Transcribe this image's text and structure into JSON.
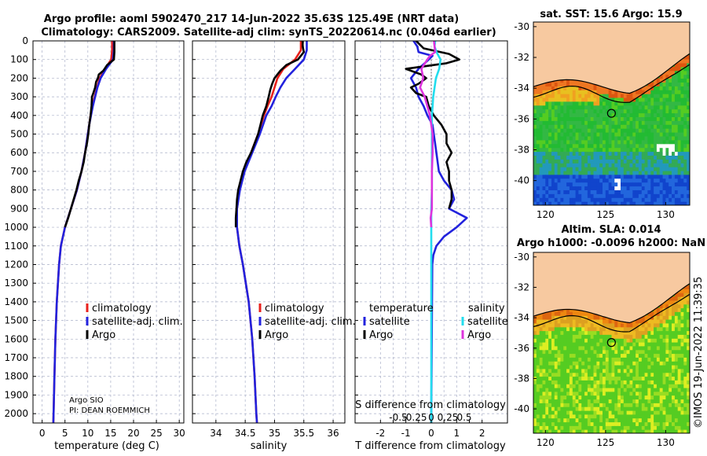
{
  "header": {
    "line1": "Argo profile: aoml 5902470_217 14-Jun-2022 35.63S 125.49E (NRT data)",
    "line2": "Climatology: CARS2009. Satellite-adj clim: synTS_20220614.nc (0.046d earlier)"
  },
  "credit": {
    "agency": "Argo SIO",
    "pi": "PI: DEAN ROEMMICH",
    "stamp": "©IMOS 19-Jun-2022 11:39:35"
  },
  "colors": {
    "climatology": "#e8211c",
    "satellite": "#2222dd",
    "argo": "#000000",
    "sal_satellite": "#22ddee",
    "sal_argo": "#dd33dd",
    "land": "#f7c9a0",
    "grid": "#aab0c8"
  },
  "legend": {
    "climatology": "climatology",
    "satellite": "satellite-adj. clim.",
    "argo": "Argo",
    "diff_temperature": "temperature",
    "diff_salinity": "salinity",
    "diff_satellite": "satellite",
    "diff_argo": "Argo"
  },
  "chart_data": [
    {
      "type": "line",
      "title": "temperature profile",
      "xlabel": "temperature (deg C)",
      "ylabel": "",
      "xlim": [
        -2,
        31
      ],
      "ylim": [
        2050,
        0
      ],
      "x_ticks": [
        "0",
        "5",
        "10",
        "15",
        "20",
        "25",
        "30"
      ],
      "y_ticks": [
        "0",
        "100",
        "200",
        "300",
        "400",
        "500",
        "600",
        "700",
        "800",
        "900",
        "1000",
        "1100",
        "1200",
        "1300",
        "1400",
        "1500",
        "1600",
        "1700",
        "1800",
        "1900",
        "2000"
      ],
      "series": [
        {
          "name": "climatology",
          "pressure": [
            0,
            50,
            100,
            150,
            200,
            250,
            300,
            350,
            400,
            450,
            500,
            600,
            700,
            800,
            900,
            1000,
            1100,
            1200,
            1400,
            1600,
            1800,
            2000,
            2050
          ],
          "values": [
            15.3,
            15.3,
            15.1,
            13.8,
            12.6,
            12.0,
            11.5,
            11.0,
            10.6,
            10.3,
            10.0,
            9.4,
            8.6,
            7.6,
            6.3,
            5.0,
            4.1,
            3.7,
            3.2,
            2.9,
            2.7,
            2.5,
            2.45
          ]
        },
        {
          "name": "satellite-adj. clim.",
          "pressure": [
            0,
            50,
            100,
            150,
            200,
            250,
            300,
            350,
            400,
            450,
            500,
            600,
            700,
            800,
            900,
            1000,
            1100,
            1200,
            1400,
            1600,
            1800,
            2000,
            2050
          ],
          "values": [
            15.7,
            15.7,
            15.5,
            14.0,
            12.8,
            12.1,
            11.6,
            11.1,
            10.7,
            10.3,
            10.0,
            9.4,
            8.6,
            7.6,
            6.3,
            5.0,
            4.1,
            3.7,
            3.2,
            2.9,
            2.7,
            2.5,
            2.45
          ]
        },
        {
          "name": "Argo",
          "pressure": [
            0,
            20,
            60,
            100,
            130,
            160,
            180,
            200,
            220,
            250,
            280,
            300,
            350,
            400,
            450,
            500,
            550,
            600,
            650,
            700,
            750,
            800,
            850,
            900,
            950,
            1000
          ],
          "values": [
            15.8,
            15.8,
            15.8,
            15.7,
            14.2,
            13.4,
            12.4,
            12.2,
            11.8,
            11.6,
            11.2,
            10.9,
            10.8,
            10.6,
            10.3,
            10.1,
            9.8,
            9.4,
            9.1,
            8.6,
            8.0,
            7.5,
            6.9,
            6.3,
            5.7,
            5.0
          ]
        }
      ]
    },
    {
      "type": "line",
      "title": "salinity profile",
      "xlabel": "salinity",
      "ylabel": "",
      "xlim": [
        33.6,
        36.2
      ],
      "ylim": [
        2050,
        0
      ],
      "x_ticks": [
        "34",
        "34.5",
        "35",
        "35.5",
        "36"
      ],
      "series": [
        {
          "name": "climatology",
          "pressure": [
            0,
            50,
            100,
            150,
            200,
            250,
            300,
            350,
            400,
            500,
            600,
            700,
            800,
            900,
            1000,
            1100,
            1200,
            1400,
            1600,
            1800,
            2000,
            2050
          ],
          "values": [
            35.45,
            35.45,
            35.35,
            35.15,
            35.05,
            35.0,
            34.95,
            34.88,
            34.82,
            34.72,
            34.6,
            34.48,
            34.4,
            34.36,
            34.36,
            34.4,
            34.46,
            34.56,
            34.62,
            34.66,
            34.69,
            34.7
          ]
        },
        {
          "name": "satellite-adj. clim.",
          "pressure": [
            0,
            50,
            100,
            150,
            200,
            250,
            300,
            350,
            400,
            500,
            600,
            700,
            800,
            900,
            1000,
            1100,
            1200,
            1400,
            1600,
            1800,
            2000,
            2050
          ],
          "values": [
            35.55,
            35.55,
            35.5,
            35.35,
            35.2,
            35.1,
            35.02,
            34.95,
            34.86,
            34.75,
            34.62,
            34.49,
            34.41,
            34.36,
            34.36,
            34.4,
            34.46,
            34.56,
            34.62,
            34.66,
            34.69,
            34.7
          ]
        },
        {
          "name": "Argo",
          "pressure": [
            0,
            30,
            60,
            100,
            130,
            160,
            200,
            230,
            260,
            300,
            350,
            400,
            450,
            500,
            550,
            600,
            650,
            700,
            750,
            800,
            850,
            900,
            950,
            1000
          ],
          "values": [
            35.48,
            35.48,
            35.5,
            35.4,
            35.2,
            35.1,
            35.0,
            34.96,
            34.93,
            34.9,
            34.86,
            34.8,
            34.76,
            34.72,
            34.66,
            34.6,
            34.52,
            34.46,
            34.42,
            34.38,
            34.36,
            34.35,
            34.34,
            34.34
          ]
        }
      ]
    },
    {
      "type": "line",
      "title": "difference from climatology",
      "xlabel": "T difference from climatology",
      "xlabel_top": "S difference from climatology",
      "xlim": [
        -3,
        3
      ],
      "ylim": [
        2050,
        0
      ],
      "x_ticks": [
        "-2",
        "-1.5",
        "-1",
        "-0.5",
        "0",
        "0.5",
        "1",
        "1.5",
        "2"
      ],
      "s_ticks": [
        "-0.5",
        "-0.25",
        "0",
        "0.25",
        "0.5"
      ],
      "series": [
        {
          "name": "temperature satellite",
          "pressure": [
            0,
            30,
            60,
            80,
            100,
            150,
            200,
            250,
            300,
            350,
            400,
            450,
            500,
            550,
            600,
            650,
            700,
            750,
            800,
            850,
            900,
            950,
            1000,
            1050,
            1100,
            1150,
            1200,
            2000,
            2050
          ],
          "values": [
            -0.7,
            -0.55,
            -0.5,
            0.05,
            -0.1,
            -0.5,
            -0.8,
            -0.6,
            -0.5,
            -0.3,
            -0.15,
            0.05,
            0.1,
            0.15,
            0.2,
            0.25,
            0.3,
            0.5,
            0.8,
            0.9,
            0.7,
            1.4,
            1.0,
            0.5,
            0.2,
            0.08,
            0.04,
            0.0,
            0.0
          ]
        },
        {
          "name": "temperature Argo",
          "pressure": [
            0,
            40,
            70,
            100,
            120,
            150,
            180,
            200,
            230,
            250,
            280,
            300,
            350,
            400,
            450,
            500,
            550,
            600,
            650,
            700,
            750,
            800,
            850,
            900
          ],
          "values": [
            -0.6,
            -0.3,
            0.7,
            1.1,
            0.6,
            -1.0,
            -0.4,
            -0.2,
            -0.5,
            -0.8,
            -0.6,
            -0.2,
            -0.1,
            0.1,
            0.4,
            0.6,
            0.6,
            0.8,
            0.6,
            0.7,
            0.7,
            0.8,
            0.8,
            0.7
          ]
        },
        {
          "name": "salinity satellite",
          "pressure": [
            0,
            30,
            60,
            100,
            150,
            200,
            250,
            300,
            350,
            400,
            500,
            600,
            700,
            800,
            900,
            1000,
            1100,
            1200,
            2000,
            2050
          ],
          "values": [
            0.06,
            0.05,
            0.08,
            0.14,
            0.12,
            0.07,
            0.05,
            0.03,
            0.02,
            0.01,
            0.01,
            0.01,
            0.01,
            0.01,
            0.0,
            0.0,
            0.0,
            0.0,
            0.0,
            0.0
          ]
        },
        {
          "name": "salinity Argo",
          "pressure": [
            0,
            30,
            60,
            80,
            100,
            150,
            200,
            250,
            300,
            350,
            400,
            450,
            500,
            600,
            700,
            800,
            900,
            950,
            1000
          ],
          "values": [
            0.04,
            0.05,
            0.06,
            -0.02,
            -0.06,
            -0.15,
            -0.12,
            -0.17,
            -0.1,
            -0.06,
            -0.02,
            0.0,
            0.02,
            0.02,
            0.01,
            0.01,
            0.01,
            -0.01,
            0.0
          ]
        }
      ]
    },
    {
      "type": "heatmap",
      "title": "sat. SST: 15.6  Argo: 15.9",
      "x_ticks": [
        "120",
        "125",
        "130"
      ],
      "y_ticks": [
        "-30",
        "-32",
        "-34",
        "-36",
        "-38",
        "-40"
      ],
      "xlim": [
        119,
        132
      ],
      "ylim": [
        -41.6,
        -29.7
      ],
      "marker": {
        "lon": 125.49,
        "lat": -35.63
      }
    },
    {
      "type": "heatmap",
      "title": "Argo h1000: -0.0096 h2000: NaN",
      "subtitle": "Altim. SLA: 0.014",
      "x_ticks": [
        "120",
        "125",
        "130"
      ],
      "y_ticks": [
        "-30",
        "-32",
        "-34",
        "-36",
        "-38",
        "-40"
      ],
      "xlim": [
        119,
        132
      ],
      "ylim": [
        -41.6,
        -29.7
      ],
      "marker": {
        "lon": 125.49,
        "lat": -35.63
      }
    }
  ]
}
